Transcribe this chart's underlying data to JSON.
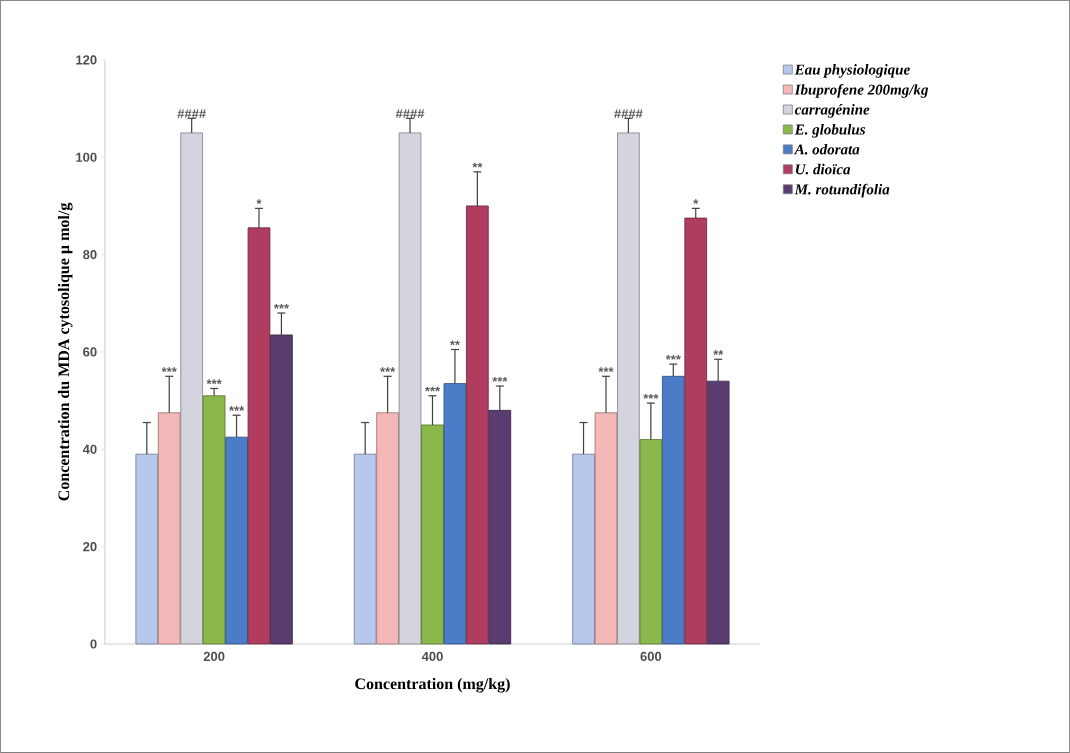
{
  "chart_data": {
    "type": "bar",
    "xlabel": "Concentration (mg/kg)",
    "ylabel": "Concentration du MDA cytosolique µ mol/g",
    "categories": [
      "200",
      "400",
      "600"
    ],
    "ylim": [
      0,
      120
    ],
    "yticks": [
      0,
      20,
      40,
      60,
      80,
      100,
      120
    ],
    "legend": "right",
    "grid": false,
    "series": [
      {
        "name": "Eau physiologique",
        "color": "#b8c8ec",
        "values": [
          39,
          39,
          39
        ],
        "errors": [
          6.5,
          6.5,
          6.5
        ],
        "value_labels": [
          null,
          null,
          null
        ]
      },
      {
        "name": "Ibuprofene 200mg/kg",
        "color": "#f4b8b8",
        "values": [
          47.5,
          47.5,
          47.5
        ],
        "errors": [
          7.5,
          7.5,
          7.5
        ],
        "value_labels": [
          "***",
          "***",
          "***"
        ]
      },
      {
        "name": "carragénine",
        "color": "#d4d4de",
        "values": [
          105,
          105,
          105
        ],
        "errors": [
          3,
          3,
          3
        ],
        "value_labels": [
          "####",
          "####",
          "####"
        ]
      },
      {
        "name": "E. globulus",
        "color": "#8ab84a",
        "values": [
          51,
          45,
          42
        ],
        "errors": [
          1.5,
          6,
          7.5
        ],
        "value_labels": [
          "***",
          "***",
          "***"
        ]
      },
      {
        "name": "A. odorata",
        "color": "#4a7cc8",
        "values": [
          42.5,
          53.5,
          55
        ],
        "errors": [
          4.5,
          7,
          2.5
        ],
        "value_labels": [
          "***",
          "**",
          "***"
        ]
      },
      {
        "name": "U. dioïca",
        "color": "#b03c60",
        "values": [
          85.5,
          90,
          87.5
        ],
        "errors": [
          4,
          7,
          2
        ],
        "value_labels": [
          "*",
          "**",
          "*"
        ]
      },
      {
        "name": "M. rotundifolia",
        "color": "#5a3c70",
        "values": [
          63.5,
          48,
          54
        ],
        "errors": [
          4.5,
          5,
          4.5
        ],
        "value_labels": [
          "***",
          "***",
          "**"
        ]
      }
    ]
  }
}
